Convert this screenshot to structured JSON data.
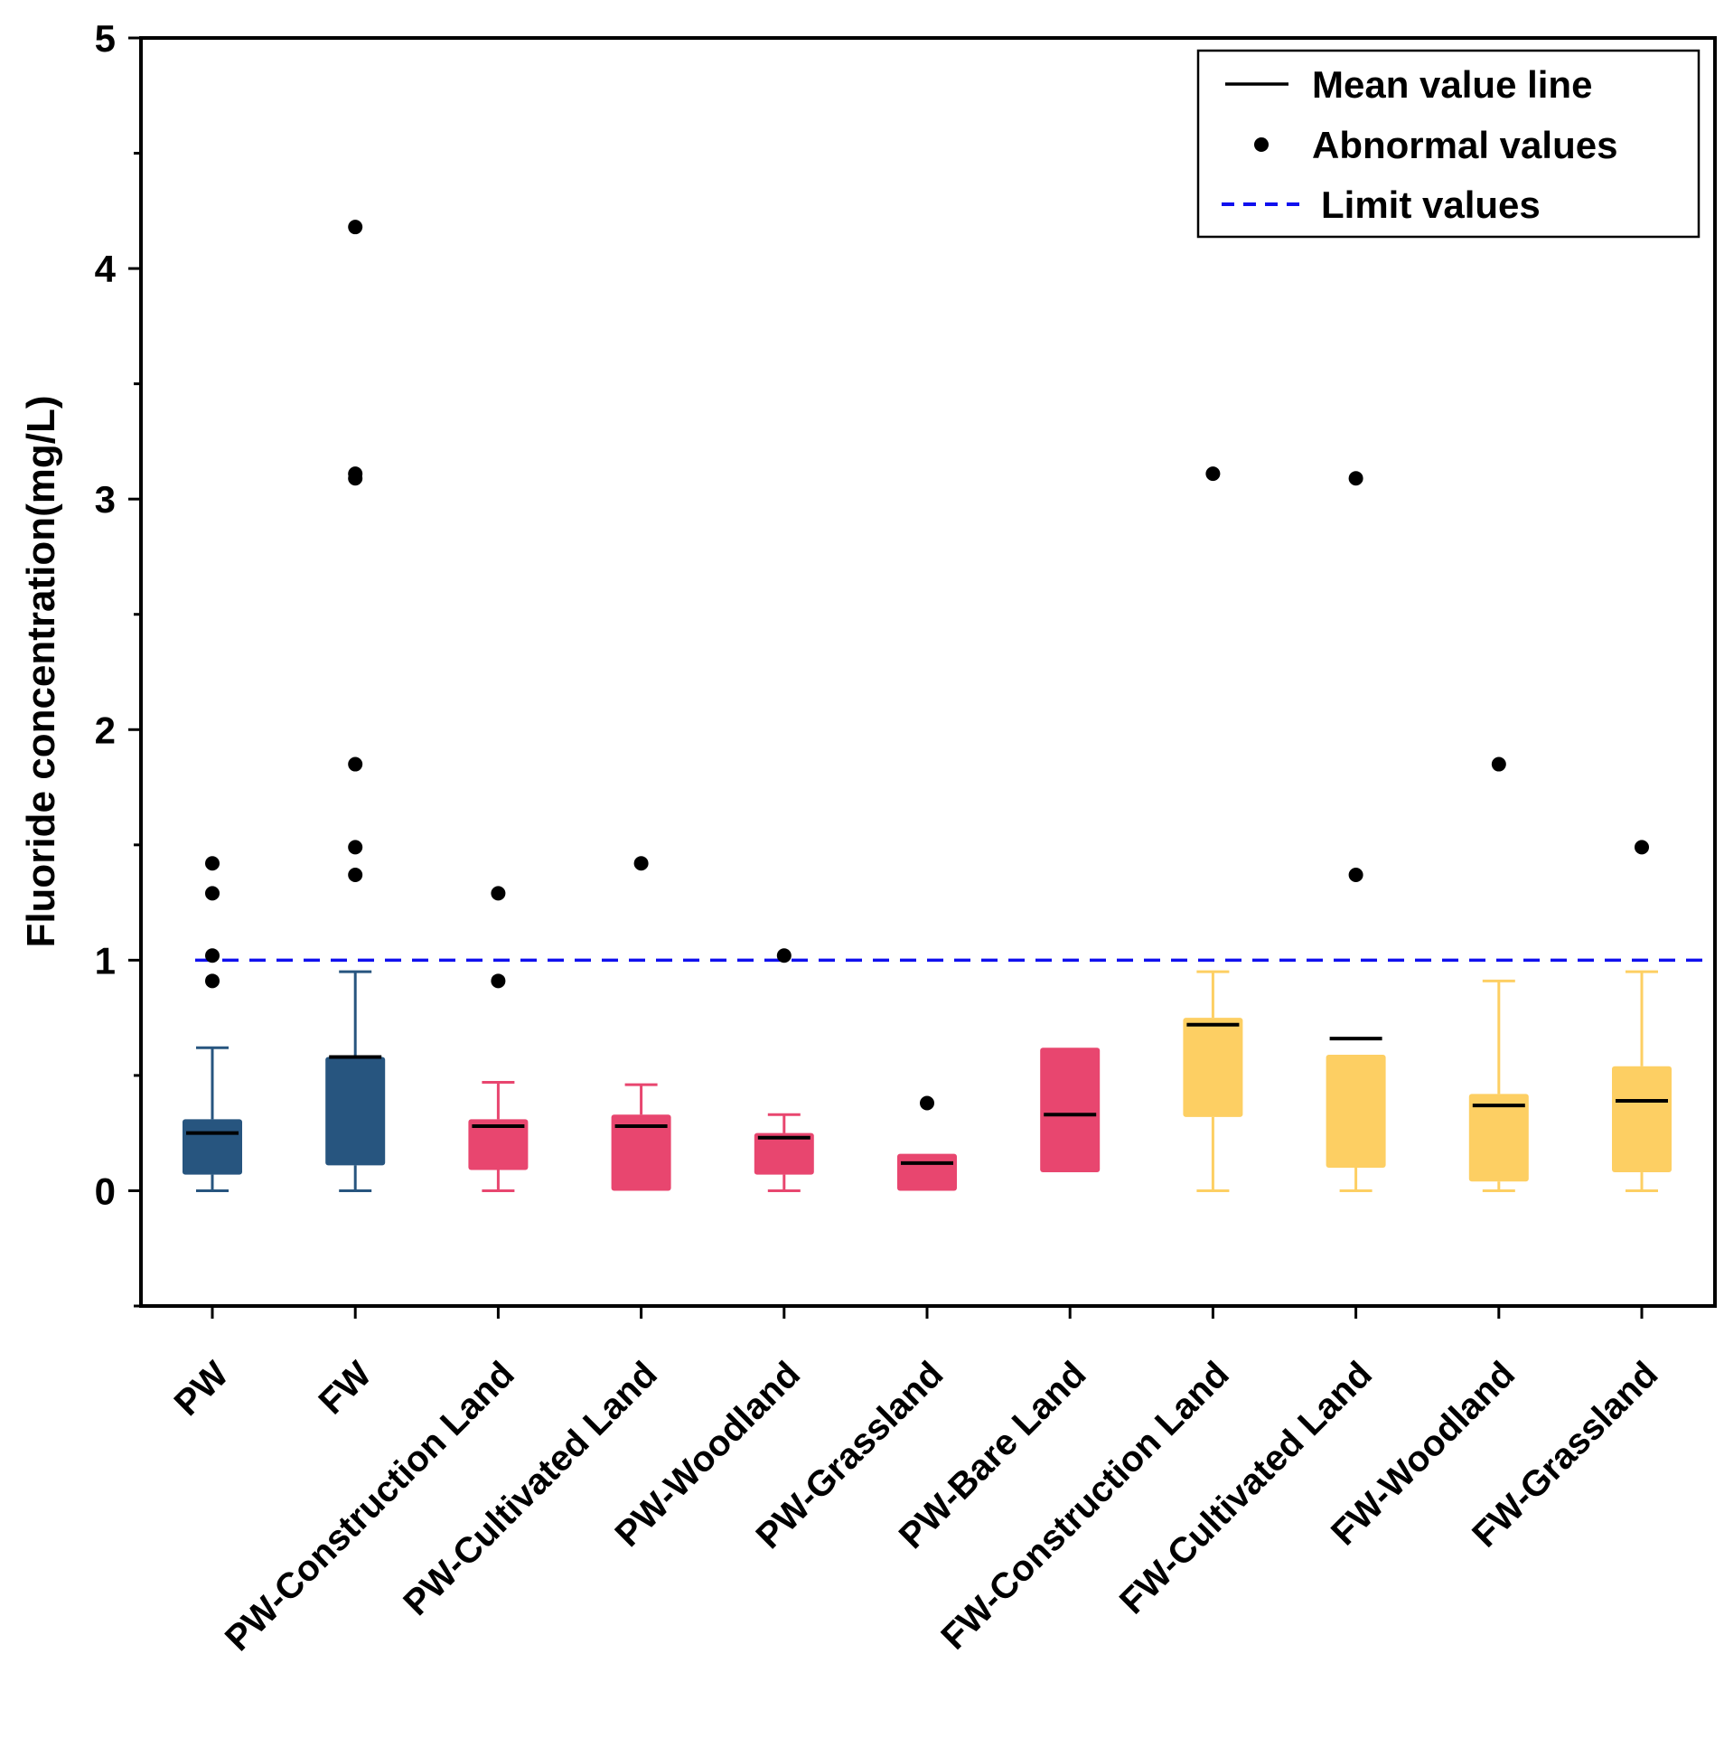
{
  "chart_data": {
    "type": "box",
    "ylabel": "Fluoride concentration(mg/L)",
    "xlabel": "",
    "ylim": [
      -0.5,
      5
    ],
    "yticks": [
      0,
      1,
      2,
      3,
      4,
      5
    ],
    "grid": false,
    "legend": {
      "position": "top-right",
      "entries": [
        {
          "label": "Mean value line",
          "symbol": "line"
        },
        {
          "label": "Abnormal values",
          "symbol": "dot"
        },
        {
          "label": "Limit values",
          "symbol": "dashed-line"
        }
      ]
    },
    "limit_value": 1.0,
    "limit_color": "#1010ee",
    "colors": {
      "PW": "#27557f",
      "PW-land": "#e8466f",
      "FW-land": "#fdcf63"
    },
    "categories": [
      "PW",
      "FW",
      "PW-Construction Land",
      "PW-Cultivated Land",
      "PW-Woodland",
      "PW-Grassland",
      "PW-Bare Land",
      "FW-Construction Land",
      "FW-Cultivated Land",
      "FW-Woodland",
      "FW-Grassland"
    ],
    "boxes": [
      {
        "category": "PW",
        "color_key": "PW",
        "whisker_low": 0.0,
        "q1": 0.07,
        "mean": 0.25,
        "q3": 0.31,
        "whisker_high": 0.62,
        "outliers": [
          1.42,
          1.29,
          1.02,
          0.91
        ]
      },
      {
        "category": "FW",
        "color_key": "PW",
        "whisker_low": 0.0,
        "q1": 0.11,
        "mean": 0.58,
        "q3": 0.58,
        "whisker_high": 0.95,
        "outliers": [
          4.18,
          3.11,
          3.09,
          1.85,
          1.49,
          1.37
        ]
      },
      {
        "category": "PW-Construction Land",
        "color_key": "PW-land",
        "whisker_low": 0.0,
        "q1": 0.09,
        "mean": 0.28,
        "q3": 0.31,
        "whisker_high": 0.47,
        "outliers": [
          1.29,
          0.91
        ]
      },
      {
        "category": "PW-Cultivated Land",
        "color_key": "PW-land",
        "whisker_low": null,
        "q1": 0.0,
        "mean": 0.28,
        "q3": 0.33,
        "whisker_high": 0.46,
        "outliers": [
          1.42
        ]
      },
      {
        "category": "PW-Woodland",
        "color_key": "PW-land",
        "whisker_low": 0.0,
        "q1": 0.07,
        "mean": 0.23,
        "q3": 0.25,
        "whisker_high": 0.33,
        "outliers": [
          1.02
        ]
      },
      {
        "category": "PW-Grassland",
        "color_key": "PW-land",
        "whisker_low": null,
        "q1": 0.0,
        "mean": 0.12,
        "q3": 0.16,
        "whisker_high": null,
        "outliers": [
          0.38
        ]
      },
      {
        "category": "PW-Bare Land",
        "color_key": "PW-land",
        "whisker_low": null,
        "q1": 0.08,
        "mean": 0.33,
        "q3": 0.62,
        "whisker_high": null,
        "outliers": []
      },
      {
        "category": "FW-Construction Land",
        "color_key": "FW-land",
        "whisker_low": 0.0,
        "q1": 0.32,
        "mean": 0.72,
        "q3": 0.75,
        "whisker_high": 0.95,
        "outliers": [
          3.11
        ]
      },
      {
        "category": "FW-Cultivated Land",
        "color_key": "FW-land",
        "whisker_low": 0.0,
        "q1": 0.1,
        "mean": 0.66,
        "q3": 0.59,
        "whisker_high": null,
        "outliers": [
          3.09,
          1.37
        ]
      },
      {
        "category": "FW-Woodland",
        "color_key": "FW-land",
        "whisker_low": 0.0,
        "q1": 0.04,
        "mean": 0.37,
        "q3": 0.42,
        "whisker_high": 0.91,
        "outliers": [
          1.85
        ]
      },
      {
        "category": "FW-Grassland",
        "color_key": "FW-land",
        "whisker_low": 0.0,
        "q1": 0.08,
        "mean": 0.39,
        "q3": 0.54,
        "whisker_high": 0.95,
        "outliers": [
          1.49
        ]
      }
    ]
  }
}
